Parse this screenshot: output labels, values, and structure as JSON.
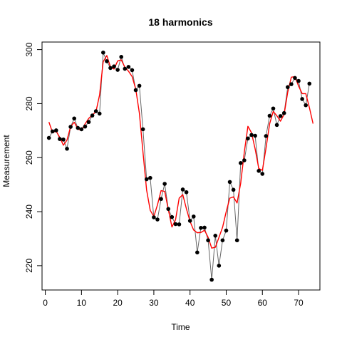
{
  "chart_data": {
    "type": "line",
    "title": "18 harmonics",
    "xlabel": "Time",
    "ylabel": "Measurement",
    "xlim": [
      -0.9,
      75.9
    ],
    "ylim": [
      211.0,
      302.8
    ],
    "x_ticks": [
      0,
      10,
      20,
      30,
      40,
      50,
      60,
      70
    ],
    "y_ticks": [
      220,
      240,
      260,
      280,
      300
    ],
    "grid": false,
    "colors": {
      "observed": "#000000",
      "observed_line": "#666666",
      "fitted": "#ff0000"
    },
    "series": [
      {
        "kind": "points+line",
        "x": [
          1,
          2,
          3,
          4,
          5,
          6,
          7,
          8,
          9,
          10,
          11,
          12,
          13,
          14,
          15,
          16,
          17,
          18,
          19,
          20,
          21,
          22,
          23,
          24,
          25,
          26,
          27,
          28,
          29,
          30,
          31,
          32,
          33,
          34,
          35,
          36,
          37,
          38,
          39,
          40,
          41,
          42,
          43,
          44,
          45,
          46,
          47,
          48,
          49,
          50,
          51,
          52,
          53,
          54,
          55,
          56,
          57,
          58,
          59,
          60,
          61,
          62,
          63,
          64,
          65,
          66,
          67,
          68,
          69,
          70,
          71,
          72,
          73
        ],
        "y": [
          267.3,
          269.7,
          270.1,
          266.9,
          266.7,
          263.3,
          271.4,
          274.5,
          271.0,
          270.5,
          271.5,
          273.2,
          275.6,
          277.2,
          276.3,
          298.9,
          295.7,
          293.2,
          293.8,
          292.5,
          297.3,
          292.9,
          293.6,
          292.4,
          285.0,
          286.6,
          270.5,
          252.0,
          252.5,
          237.9,
          237.1,
          244.7,
          250.3,
          241.0,
          238.0,
          235.4,
          235.3,
          248.2,
          247.2,
          236.6,
          238.2,
          224.9,
          234.0,
          234.1,
          229.4,
          214.8,
          231.1,
          220.0,
          229.4,
          233.0,
          251.0,
          248.1,
          229.4,
          258.0,
          259.0,
          267.1,
          268.4,
          268.1,
          255.1,
          254.0,
          268.0,
          275.5,
          278.2,
          272.1,
          275.4,
          276.5,
          286.1,
          287.2,
          289.5,
          288.4,
          281.7,
          279.4,
          287.4
        ]
      },
      {
        "kind": "line",
        "x": [
          1,
          2,
          3,
          4,
          5,
          6,
          7,
          8,
          9,
          10,
          11,
          12,
          13,
          14,
          15,
          16,
          17,
          18,
          19,
          20,
          21,
          22,
          23,
          24,
          25,
          26,
          27,
          28,
          29,
          30,
          31,
          32,
          33,
          34,
          35,
          36,
          37,
          38,
          39,
          40,
          41,
          42,
          43,
          44,
          45,
          46,
          47,
          48,
          49,
          50,
          51,
          52,
          53,
          54,
          55,
          56,
          57,
          58,
          59,
          60,
          61,
          62,
          63,
          64,
          65,
          66,
          67,
          68,
          69,
          70,
          71,
          72,
          73,
          74
        ],
        "y": [
          273.2,
          269.3,
          269.8,
          267.5,
          264.6,
          266.5,
          271.5,
          273.1,
          270.6,
          270.1,
          272.5,
          274.5,
          275.8,
          277.0,
          283.2,
          295.5,
          297.8,
          293.6,
          292.8,
          295.8,
          296.2,
          293.5,
          292.0,
          290.0,
          285.4,
          276.5,
          262.0,
          248.0,
          240.5,
          238.2,
          242.5,
          247.8,
          247.5,
          240.8,
          234.3,
          237.0,
          245.0,
          246.3,
          241.1,
          236.4,
          233.2,
          232.2,
          232.3,
          233.1,
          230.5,
          226.5,
          226.8,
          230.5,
          234.2,
          240.0,
          245.0,
          245.5,
          243.2,
          250.5,
          262.0,
          271.6,
          269.2,
          263.2,
          256.0,
          255.3,
          263.5,
          272.5,
          277.1,
          275.5,
          273.5,
          276.0,
          284.2,
          289.8,
          290.0,
          286.5,
          283.7,
          283.7,
          278.5,
          272.6
        ]
      }
    ]
  }
}
